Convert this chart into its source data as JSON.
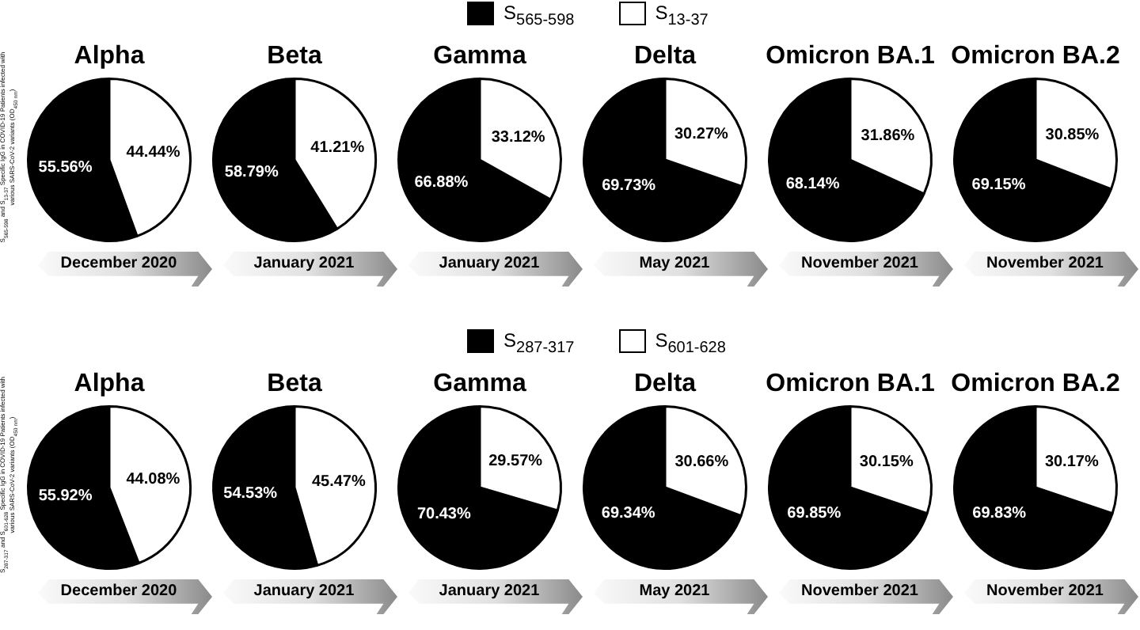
{
  "chart_data": [
    {
      "type": "pie",
      "title": "Alpha",
      "categories": [
        null,
        null
      ],
      "values": [
        55.56,
        44.44
      ],
      "colors": [
        "#000000",
        "#ffffff"
      ],
      "value_labels": [
        "55.56%",
        "44.44%"
      ],
      "annotations": [
        "December 2020",
        "S$_{565-598}$ and S$_{13-37}$ Specific IgG in COVID-19 Patients infected with various SARS-CoV-2 variants (OD$_{450 nm}$)"
      ]
    },
    {
      "type": "pie",
      "title": "Beta",
      "categories": [
        null,
        null
      ],
      "values": [
        58.79,
        41.21
      ],
      "colors": [
        "#000000",
        "#ffffff"
      ],
      "value_labels": [
        "58.79%",
        "41.21%"
      ],
      "annotations": [
        "January 2021"
      ]
    },
    {
      "type": "pie",
      "title": "Gamma",
      "categories": [
        "S$_{565-598}$",
        "S$_{13-37}$"
      ],
      "values": [
        66.88,
        33.12
      ],
      "colors": [
        "#000000",
        "#ffffff"
      ],
      "value_labels": [
        "66.88%",
        "33.12%"
      ],
      "legend": "top right",
      "annotations": [
        "January 2021"
      ]
    },
    {
      "type": "pie",
      "title": "Delta",
      "categories": [
        null,
        null
      ],
      "values": [
        69.73,
        30.27
      ],
      "colors": [
        "#000000",
        "#ffffff"
      ],
      "value_labels": [
        "69.73%",
        "30.27%"
      ],
      "annotations": [
        "May 2021"
      ]
    },
    {
      "type": "pie",
      "title": "Omicron BA.1",
      "categories": [
        null,
        null
      ],
      "values": [
        68.14,
        31.86
      ],
      "colors": [
        "#000000",
        "#ffffff"
      ],
      "value_labels": [
        "68.14%",
        "31.86%"
      ],
      "annotations": [
        "November 2021"
      ]
    },
    {
      "type": "pie",
      "title": "Omicron BA.2",
      "categories": [
        null,
        null
      ],
      "values": [
        69.15,
        30.85
      ],
      "colors": [
        "#000000",
        "#ffffff"
      ],
      "value_labels": [
        "69.15%",
        "30.85%"
      ],
      "annotations": [
        "November 2021"
      ]
    },
    {
      "type": "pie",
      "title": "Alpha",
      "categories": [
        null,
        null
      ],
      "values": [
        55.92,
        44.08
      ],
      "colors": [
        "#000000",
        "#ffffff"
      ],
      "value_labels": [
        "55.92%",
        "44.08%"
      ],
      "annotations": [
        "December 2020",
        "S$_{287-317}$ and S$_{601-628}$ Specific IgG in COVID-19 Patients infected with various SARS-CoV-2 variants (OD$_{450 nm}$)"
      ]
    },
    {
      "type": "pie",
      "title": "Beta",
      "categories": [
        null,
        null
      ],
      "values": [
        54.53,
        45.47
      ],
      "colors": [
        "#000000",
        "#ffffff"
      ],
      "value_labels": [
        "54.53%",
        "45.47%"
      ],
      "annotations": [
        "January 2021"
      ]
    },
    {
      "type": "pie",
      "title": "Gamma",
      "categories": [
        "S$_{287-317}$",
        "S$_{601-628}$"
      ],
      "values": [
        70.43,
        29.57
      ],
      "colors": [
        "#000000",
        "#ffffff"
      ],
      "value_labels": [
        "70.43%",
        "29.57%"
      ],
      "legend": "top right",
      "annotations": [
        "January 2021"
      ]
    },
    {
      "type": "pie",
      "title": "Delta",
      "categories": [
        null,
        null
      ],
      "values": [
        69.34,
        30.66
      ],
      "colors": [
        "#000000",
        "#ffffff"
      ],
      "value_labels": [
        "69.34%",
        "30.66%"
      ],
      "annotations": [
        "May 2021"
      ]
    },
    {
      "type": "pie",
      "title": "Omicron BA.1",
      "categories": [
        null,
        null
      ],
      "values": [
        69.85,
        30.15
      ],
      "colors": [
        "#000000",
        "#ffffff"
      ],
      "value_labels": [
        "69.85%",
        "30.15%"
      ],
      "annotations": [
        "November 2021"
      ]
    },
    {
      "type": "pie",
      "title": "Omicron BA.2",
      "categories": [
        null,
        null
      ],
      "values": [
        69.83,
        30.17
      ],
      "colors": [
        "#000000",
        "#ffffff"
      ],
      "value_labels": [
        "69.83%",
        "30.17%"
      ],
      "annotations": [
        "November 2021"
      ]
    }
  ]
}
